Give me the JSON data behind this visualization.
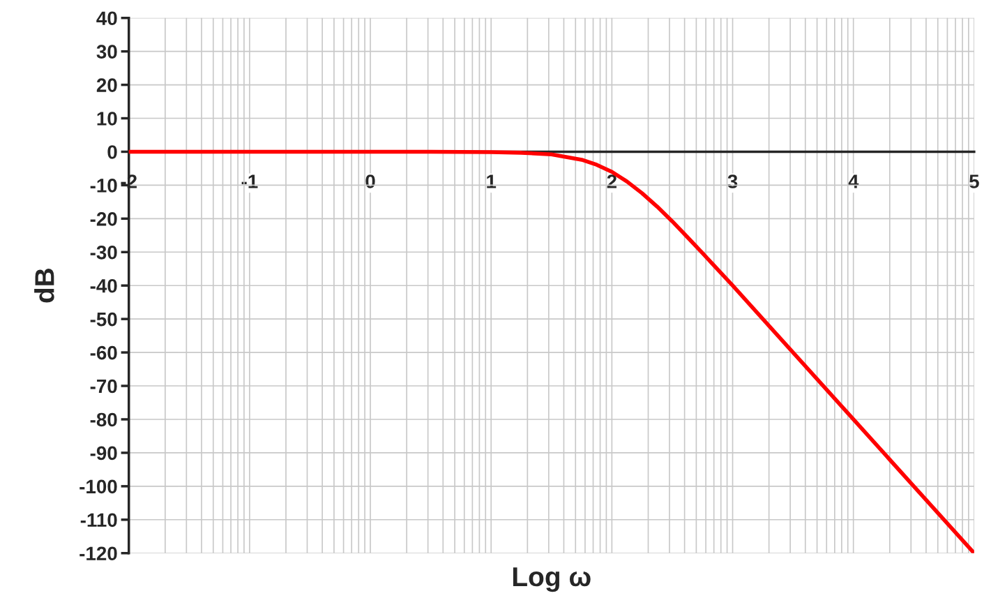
{
  "chart_data": {
    "type": "line",
    "xlabel": "Log ω",
    "ylabel": "dB",
    "x": [
      -2,
      -1.5,
      -1,
      -0.5,
      0,
      0.5,
      1,
      1.25,
      1.5,
      1.75,
      1.875,
      2,
      2.125,
      2.25,
      2.375,
      2.5,
      2.625,
      2.75,
      3,
      3.5,
      4,
      4.5,
      5
    ],
    "series": [
      {
        "color": "#ff0000",
        "values": [
          0,
          0,
          0,
          0,
          0,
          0,
          -0.1,
          -0.3,
          -0.8,
          -2.4,
          -3.9,
          -6,
          -8.9,
          -12.4,
          -16.4,
          -20.8,
          -25.5,
          -30.3,
          -40,
          -60,
          -80,
          -100,
          -120
        ]
      }
    ],
    "xlim": [
      -2,
      5
    ],
    "ylim": [
      -120,
      40
    ],
    "xticks": [
      -2,
      -1,
      0,
      1,
      2,
      3,
      4,
      5,
      {
        "value": -1.699,
        "label": null
      },
      {
        "value": -1.523,
        "label": null
      },
      {
        "value": -1.398,
        "label": null
      },
      {
        "value": -1.301,
        "label": null
      },
      {
        "value": -1.222,
        "label": null
      },
      {
        "value": -1.155,
        "label": null
      },
      {
        "value": -1.097,
        "label": null
      },
      {
        "value": -1.046,
        "label": null
      },
      {
        "value": -0.699,
        "label": null
      },
      {
        "value": -0.523,
        "label": null
      },
      {
        "value": -0.398,
        "label": null
      },
      {
        "value": -0.301,
        "label": null
      },
      {
        "value": -0.222,
        "label": null
      },
      {
        "value": -0.155,
        "label": null
      },
      {
        "value": -0.097,
        "label": null
      },
      {
        "value": -0.046,
        "label": null
      },
      {
        "value": 0.301,
        "label": null
      },
      {
        "value": 0.477,
        "label": null
      },
      {
        "value": 0.602,
        "label": null
      },
      {
        "value": 0.699,
        "label": null
      },
      {
        "value": 0.778,
        "label": null
      },
      {
        "value": 0.845,
        "label": null
      },
      {
        "value": 0.903,
        "label": null
      },
      {
        "value": 0.954,
        "label": null
      },
      {
        "value": 1.301,
        "label": null
      },
      {
        "value": 1.477,
        "label": null
      },
      {
        "value": 1.602,
        "label": null
      },
      {
        "value": 1.699,
        "label": null
      },
      {
        "value": 1.778,
        "label": null
      },
      {
        "value": 1.845,
        "label": null
      },
      {
        "value": 1.903,
        "label": null
      },
      {
        "value": 1.954,
        "label": null
      },
      {
        "value": 2.301,
        "label": null
      },
      {
        "value": 2.477,
        "label": null
      },
      {
        "value": 2.602,
        "label": null
      },
      {
        "value": 2.699,
        "label": null
      },
      {
        "value": 2.778,
        "label": null
      },
      {
        "value": 2.845,
        "label": null
      },
      {
        "value": 2.903,
        "label": null
      },
      {
        "value": 2.954,
        "label": null
      },
      {
        "value": 3.301,
        "label": null
      },
      {
        "value": 3.477,
        "label": null
      },
      {
        "value": 3.602,
        "label": null
      },
      {
        "value": 3.699,
        "label": null
      },
      {
        "value": 3.778,
        "label": null
      },
      {
        "value": 3.845,
        "label": null
      },
      {
        "value": 3.903,
        "label": null
      },
      {
        "value": 3.954,
        "label": null
      },
      {
        "value": 4.301,
        "label": null
      },
      {
        "value": 4.477,
        "label": null
      },
      {
        "value": 4.602,
        "label": null
      },
      {
        "value": 4.699,
        "label": null
      },
      {
        "value": 4.778,
        "label": null
      },
      {
        "value": 4.845,
        "label": null
      },
      {
        "value": 4.903,
        "label": null
      },
      {
        "value": 4.954,
        "label": null
      }
    ],
    "yticks": [
      40,
      30,
      20,
      10,
      0,
      -10,
      -20,
      -30,
      -40,
      -50,
      -60,
      -70,
      -80,
      -90,
      -100,
      -110,
      -120
    ],
    "grid": true,
    "marker": "none",
    "line_style": "solid"
  }
}
